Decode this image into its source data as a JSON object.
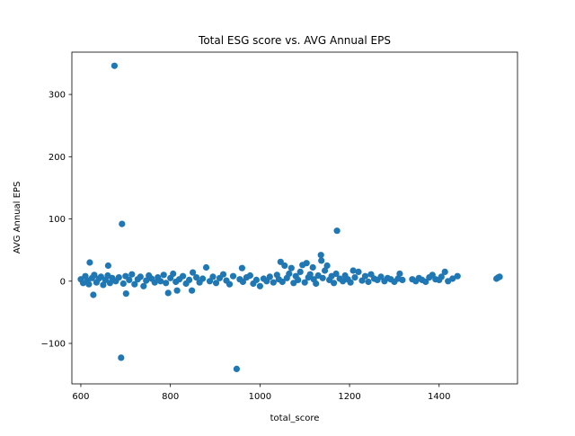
{
  "chart_data": {
    "type": "scatter",
    "title": "Total ESG score vs. AVG Annual EPS",
    "xlabel": "total_score",
    "ylabel": "AVG Annual EPS",
    "xlim": [
      580,
      1575
    ],
    "ylim": [
      -165,
      368
    ],
    "xticks": [
      600,
      800,
      1000,
      1200,
      1400
    ],
    "yticks": [
      -100,
      0,
      100,
      200,
      300
    ],
    "xtick_labels": [
      "600",
      "800",
      "1000",
      "1200",
      "1400"
    ],
    "ytick_labels": [
      "−100",
      "0",
      "100",
      "200",
      "300"
    ],
    "grid": false,
    "legend": "none",
    "point_color": "#1f77b4",
    "series": [
      {
        "points": [
          [
            675,
            346
          ],
          [
            692,
            92
          ],
          [
            1172,
            81
          ],
          [
            690,
            -123
          ],
          [
            948,
            -141
          ],
          [
            628,
            -22
          ],
          [
            701,
            -20
          ],
          [
            795,
            -19
          ],
          [
            815,
            -15
          ],
          [
            848,
            -15
          ],
          [
            620,
            30
          ],
          [
            661,
            25
          ],
          [
            880,
            22
          ],
          [
            960,
            21
          ],
          [
            1046,
            31
          ],
          [
            1055,
            25
          ],
          [
            1070,
            21
          ],
          [
            1095,
            26
          ],
          [
            1104,
            29
          ],
          [
            1118,
            22
          ],
          [
            1136,
            42
          ],
          [
            1137,
            33
          ],
          [
            1150,
            25
          ],
          [
            1208,
            17
          ],
          [
            1220,
            15
          ],
          [
            1248,
            11
          ],
          [
            1312,
            12
          ],
          [
            1385,
            10
          ],
          [
            1413,
            15
          ],
          [
            1441,
            8
          ],
          [
            1532,
            6
          ],
          [
            1528,
            4
          ],
          [
            1535,
            7
          ],
          [
            600,
            3
          ],
          [
            605,
            -3
          ],
          [
            610,
            8
          ],
          [
            615,
            1
          ],
          [
            618,
            -5
          ],
          [
            625,
            5
          ],
          [
            630,
            10
          ],
          [
            635,
            -2
          ],
          [
            640,
            4
          ],
          [
            645,
            7
          ],
          [
            650,
            -6
          ],
          [
            655,
            2
          ],
          [
            660,
            9
          ],
          [
            665,
            -3
          ],
          [
            670,
            5
          ],
          [
            678,
            0
          ],
          [
            685,
            6
          ],
          [
            695,
            -4
          ],
          [
            700,
            8
          ],
          [
            708,
            2
          ],
          [
            714,
            11
          ],
          [
            720,
            -5
          ],
          [
            727,
            3
          ],
          [
            733,
            7
          ],
          [
            740,
            -8
          ],
          [
            746,
            1
          ],
          [
            752,
            9
          ],
          [
            758,
            4
          ],
          [
            765,
            -2
          ],
          [
            772,
            6
          ],
          [
            778,
            0
          ],
          [
            785,
            10
          ],
          [
            790,
            -3
          ],
          [
            800,
            5
          ],
          [
            806,
            12
          ],
          [
            812,
            -1
          ],
          [
            820,
            3
          ],
          [
            828,
            8
          ],
          [
            835,
            -4
          ],
          [
            842,
            2
          ],
          [
            850,
            14
          ],
          [
            858,
            6
          ],
          [
            865,
            -2
          ],
          [
            872,
            4
          ],
          [
            888,
            0
          ],
          [
            895,
            7
          ],
          [
            902,
            -3
          ],
          [
            910,
            5
          ],
          [
            918,
            11
          ],
          [
            925,
            1
          ],
          [
            932,
            -5
          ],
          [
            940,
            8
          ],
          [
            955,
            3
          ],
          [
            962,
            -1
          ],
          [
            970,
            6
          ],
          [
            978,
            9
          ],
          [
            985,
            -4
          ],
          [
            992,
            2
          ],
          [
            1000,
            -8
          ],
          [
            1008,
            4
          ],
          [
            1015,
            0
          ],
          [
            1022,
            7
          ],
          [
            1030,
            -2
          ],
          [
            1038,
            10
          ],
          [
            1042,
            3
          ],
          [
            1050,
            -1
          ],
          [
            1060,
            5
          ],
          [
            1065,
            12
          ],
          [
            1075,
            -3
          ],
          [
            1080,
            8
          ],
          [
            1085,
            2
          ],
          [
            1090,
            15
          ],
          [
            1100,
            -2
          ],
          [
            1108,
            6
          ],
          [
            1112,
            11
          ],
          [
            1120,
            3
          ],
          [
            1125,
            -4
          ],
          [
            1130,
            9
          ],
          [
            1140,
            5
          ],
          [
            1145,
            17
          ],
          [
            1155,
            2
          ],
          [
            1160,
            8
          ],
          [
            1165,
            -3
          ],
          [
            1170,
            12
          ],
          [
            1178,
            4
          ],
          [
            1185,
            0
          ],
          [
            1190,
            9
          ],
          [
            1196,
            3
          ],
          [
            1202,
            -2
          ],
          [
            1212,
            6
          ],
          [
            1228,
            1
          ],
          [
            1235,
            8
          ],
          [
            1242,
            -1
          ],
          [
            1255,
            4
          ],
          [
            1262,
            2
          ],
          [
            1270,
            7
          ],
          [
            1278,
            0
          ],
          [
            1285,
            5
          ],
          [
            1292,
            3
          ],
          [
            1300,
            -1
          ],
          [
            1308,
            4
          ],
          [
            1318,
            2
          ],
          [
            1340,
            3
          ],
          [
            1348,
            0
          ],
          [
            1355,
            5
          ],
          [
            1362,
            2
          ],
          [
            1370,
            -1
          ],
          [
            1378,
            6
          ],
          [
            1392,
            3
          ],
          [
            1400,
            2
          ],
          [
            1405,
            7
          ],
          [
            1420,
            0
          ],
          [
            1430,
            4
          ]
        ]
      }
    ]
  }
}
